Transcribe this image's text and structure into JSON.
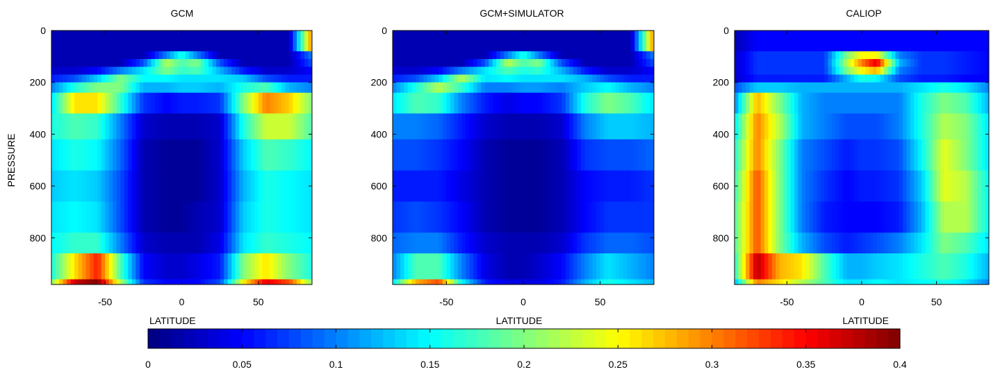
{
  "chart_data": [
    {
      "type": "heatmap",
      "title": "GCM",
      "xlabel": "LATITUDE",
      "ylabel": "PRESSURE",
      "xlim": [
        -85,
        85
      ],
      "ylim": [
        0,
        980
      ],
      "x_ticks": [
        -50,
        0,
        50
      ],
      "y_ticks": [
        0,
        200,
        400,
        600,
        800
      ],
      "y_reversed": true,
      "pressure_levels": [
        0,
        80,
        110,
        140,
        170,
        200,
        240,
        320,
        420,
        540,
        660,
        780,
        860,
        960,
        980
      ],
      "lat_nodes": [
        -85,
        -70,
        -55,
        -40,
        -25,
        -10,
        0,
        10,
        25,
        40,
        55,
        70,
        85
      ],
      "values": [
        [
          0.02,
          0.02,
          0.02,
          0.02,
          0.02,
          0.02,
          0.02,
          0.02,
          0.02,
          0.02,
          0.02,
          0.02,
          0.3
        ],
        [
          0.02,
          0.02,
          0.02,
          0.02,
          0.02,
          0.1,
          0.16,
          0.1,
          0.02,
          0.02,
          0.02,
          0.02,
          0.1
        ],
        [
          0.02,
          0.02,
          0.02,
          0.02,
          0.08,
          0.22,
          0.18,
          0.2,
          0.08,
          0.02,
          0.02,
          0.02,
          0.08
        ],
        [
          0.03,
          0.03,
          0.05,
          0.1,
          0.14,
          0.2,
          0.17,
          0.18,
          0.12,
          0.06,
          0.03,
          0.03,
          0.05
        ],
        [
          0.06,
          0.08,
          0.13,
          0.2,
          0.15,
          0.15,
          0.14,
          0.14,
          0.14,
          0.13,
          0.08,
          0.06,
          0.06
        ],
        [
          0.1,
          0.16,
          0.2,
          0.2,
          0.12,
          0.12,
          0.13,
          0.13,
          0.12,
          0.16,
          0.18,
          0.12,
          0.1
        ],
        [
          0.14,
          0.26,
          0.26,
          0.17,
          0.07,
          0.05,
          0.06,
          0.06,
          0.07,
          0.2,
          0.3,
          0.27,
          0.2
        ],
        [
          0.16,
          0.18,
          0.17,
          0.1,
          0.03,
          0.02,
          0.02,
          0.02,
          0.03,
          0.16,
          0.23,
          0.23,
          0.18
        ],
        [
          0.14,
          0.16,
          0.15,
          0.09,
          0.02,
          0.01,
          0.01,
          0.01,
          0.03,
          0.13,
          0.18,
          0.17,
          0.15
        ],
        [
          0.13,
          0.14,
          0.13,
          0.08,
          0.02,
          0.01,
          0.01,
          0.01,
          0.03,
          0.12,
          0.16,
          0.15,
          0.14
        ],
        [
          0.14,
          0.15,
          0.14,
          0.08,
          0.02,
          0.01,
          0.01,
          0.02,
          0.03,
          0.13,
          0.16,
          0.15,
          0.14
        ],
        [
          0.15,
          0.17,
          0.17,
          0.1,
          0.03,
          0.02,
          0.02,
          0.02,
          0.04,
          0.14,
          0.17,
          0.16,
          0.15
        ],
        [
          0.16,
          0.26,
          0.34,
          0.18,
          0.05,
          0.03,
          0.03,
          0.04,
          0.06,
          0.2,
          0.26,
          0.2,
          0.16
        ],
        [
          0.2,
          0.37,
          0.4,
          0.22,
          0.07,
          0.05,
          0.05,
          0.05,
          0.08,
          0.25,
          0.36,
          0.32,
          0.2
        ],
        [
          0.12,
          0.2,
          0.2,
          0.12,
          0.05,
          0.04,
          0.04,
          0.04,
          0.05,
          0.12,
          0.16,
          0.14,
          0.1
        ]
      ]
    },
    {
      "type": "heatmap",
      "title": "GCM+SIMULATOR",
      "xlabel": "LATITUDE",
      "ylabel": "",
      "xlim": [
        -85,
        85
      ],
      "ylim": [
        0,
        980
      ],
      "x_ticks": [
        -50,
        0,
        50
      ],
      "y_ticks": [
        0,
        200,
        400,
        600,
        800
      ],
      "y_reversed": true,
      "pressure_levels": [
        0,
        80,
        110,
        140,
        170,
        200,
        240,
        320,
        420,
        540,
        660,
        780,
        860,
        960,
        980
      ],
      "lat_nodes": [
        -85,
        -70,
        -55,
        -40,
        -25,
        -10,
        0,
        10,
        25,
        40,
        55,
        70,
        85
      ],
      "values": [
        [
          0.02,
          0.02,
          0.02,
          0.02,
          0.02,
          0.02,
          0.02,
          0.02,
          0.02,
          0.02,
          0.02,
          0.02,
          0.3
        ],
        [
          0.02,
          0.02,
          0.02,
          0.02,
          0.02,
          0.1,
          0.16,
          0.1,
          0.02,
          0.02,
          0.02,
          0.02,
          0.1
        ],
        [
          0.02,
          0.02,
          0.02,
          0.02,
          0.08,
          0.22,
          0.18,
          0.2,
          0.08,
          0.02,
          0.02,
          0.02,
          0.08
        ],
        [
          0.03,
          0.03,
          0.05,
          0.1,
          0.14,
          0.18,
          0.16,
          0.17,
          0.12,
          0.06,
          0.03,
          0.03,
          0.05
        ],
        [
          0.06,
          0.08,
          0.13,
          0.22,
          0.14,
          0.15,
          0.14,
          0.14,
          0.14,
          0.12,
          0.08,
          0.06,
          0.06
        ],
        [
          0.1,
          0.16,
          0.22,
          0.17,
          0.1,
          0.1,
          0.11,
          0.11,
          0.1,
          0.13,
          0.15,
          0.12,
          0.1
        ],
        [
          0.14,
          0.18,
          0.17,
          0.1,
          0.06,
          0.04,
          0.05,
          0.05,
          0.07,
          0.16,
          0.2,
          0.18,
          0.14
        ],
        [
          0.1,
          0.1,
          0.09,
          0.06,
          0.03,
          0.02,
          0.02,
          0.02,
          0.03,
          0.1,
          0.13,
          0.13,
          0.12
        ],
        [
          0.08,
          0.08,
          0.07,
          0.05,
          0.02,
          0.01,
          0.01,
          0.01,
          0.02,
          0.07,
          0.08,
          0.08,
          0.09
        ],
        [
          0.06,
          0.06,
          0.06,
          0.04,
          0.02,
          0.01,
          0.01,
          0.01,
          0.02,
          0.05,
          0.06,
          0.06,
          0.07
        ],
        [
          0.07,
          0.08,
          0.07,
          0.05,
          0.02,
          0.01,
          0.01,
          0.01,
          0.02,
          0.05,
          0.07,
          0.07,
          0.07
        ],
        [
          0.09,
          0.1,
          0.1,
          0.06,
          0.03,
          0.02,
          0.02,
          0.02,
          0.03,
          0.07,
          0.09,
          0.09,
          0.08
        ],
        [
          0.1,
          0.18,
          0.18,
          0.1,
          0.04,
          0.02,
          0.02,
          0.03,
          0.05,
          0.1,
          0.14,
          0.12,
          0.1
        ],
        [
          0.14,
          0.28,
          0.32,
          0.15,
          0.06,
          0.04,
          0.04,
          0.04,
          0.06,
          0.12,
          0.16,
          0.14,
          0.12
        ],
        [
          0.1,
          0.14,
          0.14,
          0.08,
          0.04,
          0.03,
          0.03,
          0.03,
          0.04,
          0.08,
          0.1,
          0.09,
          0.08
        ]
      ]
    },
    {
      "type": "heatmap",
      "title": "CALIOP",
      "xlabel": "LATITUDE",
      "ylabel": "",
      "xlim": [
        -85,
        85
      ],
      "ylim": [
        0,
        980
      ],
      "x_ticks": [
        -50,
        0,
        50
      ],
      "y_ticks": [
        0,
        200,
        400,
        600,
        800
      ],
      "y_reversed": true,
      "pressure_levels": [
        0,
        80,
        110,
        140,
        170,
        200,
        240,
        320,
        420,
        540,
        660,
        780,
        860,
        960,
        980
      ],
      "lat_nodes": [
        -85,
        -70,
        -55,
        -40,
        -25,
        -10,
        0,
        10,
        25,
        40,
        55,
        70,
        85
      ],
      "values": [
        [
          0.02,
          0.05,
          0.05,
          0.05,
          0.05,
          0.05,
          0.05,
          0.05,
          0.05,
          0.05,
          0.05,
          0.05,
          0.05
        ],
        [
          0.03,
          0.07,
          0.07,
          0.07,
          0.07,
          0.2,
          0.25,
          0.25,
          0.1,
          0.07,
          0.07,
          0.06,
          0.05
        ],
        [
          0.03,
          0.07,
          0.07,
          0.07,
          0.07,
          0.22,
          0.3,
          0.36,
          0.12,
          0.07,
          0.07,
          0.06,
          0.05
        ],
        [
          0.03,
          0.07,
          0.07,
          0.07,
          0.07,
          0.2,
          0.25,
          0.28,
          0.1,
          0.07,
          0.07,
          0.06,
          0.05
        ],
        [
          0.03,
          0.06,
          0.06,
          0.06,
          0.06,
          0.12,
          0.16,
          0.15,
          0.08,
          0.06,
          0.06,
          0.05,
          0.05
        ],
        [
          0.08,
          0.13,
          0.13,
          0.12,
          0.12,
          0.12,
          0.12,
          0.12,
          0.12,
          0.14,
          0.16,
          0.14,
          0.1
        ],
        [
          0.1,
          0.28,
          0.2,
          0.12,
          0.1,
          0.1,
          0.1,
          0.1,
          0.1,
          0.16,
          0.2,
          0.18,
          0.12
        ],
        [
          0.14,
          0.3,
          0.22,
          0.12,
          0.1,
          0.08,
          0.08,
          0.08,
          0.1,
          0.16,
          0.22,
          0.2,
          0.14
        ],
        [
          0.16,
          0.3,
          0.2,
          0.1,
          0.08,
          0.06,
          0.07,
          0.07,
          0.08,
          0.15,
          0.24,
          0.2,
          0.14
        ],
        [
          0.17,
          0.32,
          0.2,
          0.1,
          0.07,
          0.05,
          0.06,
          0.06,
          0.07,
          0.13,
          0.24,
          0.22,
          0.15
        ],
        [
          0.18,
          0.32,
          0.2,
          0.1,
          0.06,
          0.05,
          0.05,
          0.05,
          0.06,
          0.12,
          0.22,
          0.22,
          0.15
        ],
        [
          0.18,
          0.32,
          0.2,
          0.12,
          0.08,
          0.06,
          0.07,
          0.08,
          0.1,
          0.14,
          0.2,
          0.18,
          0.14
        ],
        [
          0.16,
          0.38,
          0.28,
          0.26,
          0.18,
          0.12,
          0.12,
          0.13,
          0.14,
          0.16,
          0.18,
          0.16,
          0.12
        ],
        [
          0.12,
          0.3,
          0.26,
          0.22,
          0.18,
          0.14,
          0.14,
          0.15,
          0.14,
          0.15,
          0.16,
          0.14,
          0.1
        ],
        [
          0.08,
          0.14,
          0.12,
          0.12,
          0.1,
          0.08,
          0.08,
          0.08,
          0.08,
          0.08,
          0.1,
          0.08,
          0.06
        ]
      ]
    }
  ],
  "colorbar": {
    "colormap": "jet",
    "min": 0,
    "max": 0.4,
    "tick_values": [
      0,
      0.05,
      0.1,
      0.15,
      0.2,
      0.25,
      0.3,
      0.35,
      0.4
    ],
    "tick_labels": [
      "0",
      "0.05",
      "0.1",
      "0.15",
      "0.2",
      "0.25",
      "0.3",
      "0.35",
      "0.4"
    ]
  }
}
